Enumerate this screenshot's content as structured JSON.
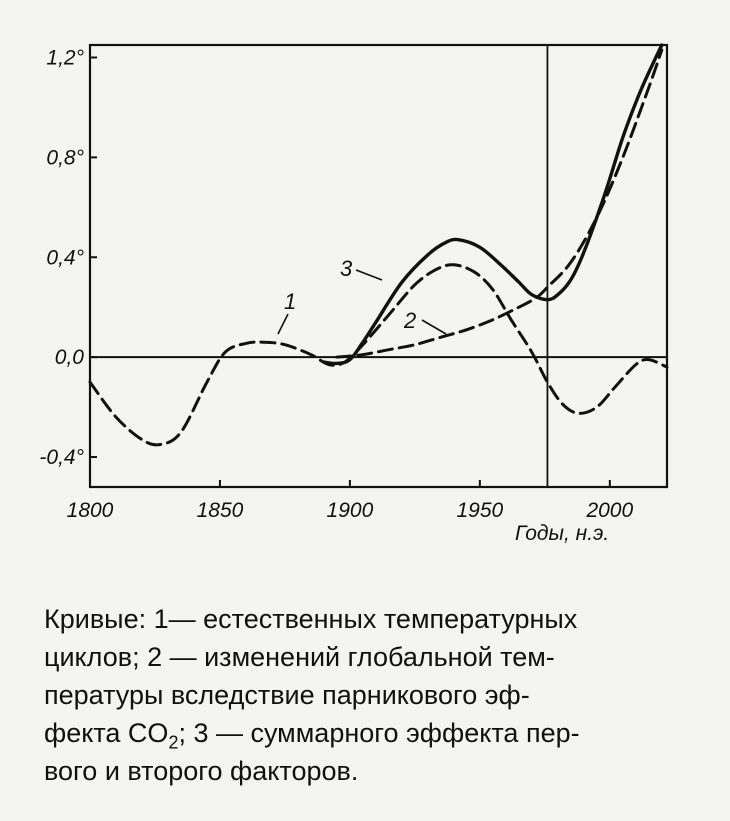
{
  "chart_data": {
    "type": "line",
    "xlabel": "Годы, н.э.",
    "ylabel": "",
    "xlim": [
      1800,
      2022
    ],
    "ylim": [
      -0.52,
      1.25
    ],
    "x_ticks": [
      1800,
      1850,
      1900,
      1950,
      2000
    ],
    "x_tick_labels": [
      "1800",
      "1850",
      "1900",
      "1950",
      "2000"
    ],
    "y_ticks": [
      -0.4,
      0.0,
      0.4,
      0.8,
      1.2
    ],
    "y_tick_labels": [
      "-0,4°",
      "0,0",
      "0,4°",
      "0,8°",
      "1,2°"
    ],
    "zero_line": true,
    "reference_line_x": 1976,
    "grid": false,
    "series": [
      {
        "name": "1",
        "style": "dashed",
        "x": [
          1800,
          1810,
          1820,
          1827,
          1835,
          1845,
          1852,
          1860,
          1867,
          1875,
          1885,
          1892,
          1898,
          1905,
          1915,
          1925,
          1933,
          1940,
          1948,
          1955,
          1962,
          1970,
          1976,
          1982,
          1988,
          1995,
          2002,
          2010,
          2015,
          2022
        ],
        "y": [
          -0.1,
          -0.24,
          -0.33,
          -0.35,
          -0.3,
          -0.1,
          0.02,
          0.055,
          0.06,
          0.05,
          0.01,
          -0.03,
          -0.02,
          0.05,
          0.17,
          0.29,
          0.35,
          0.37,
          0.34,
          0.27,
          0.15,
          0.02,
          -0.1,
          -0.19,
          -0.225,
          -0.2,
          -0.12,
          -0.03,
          -0.01,
          -0.04
        ]
      },
      {
        "name": "2",
        "style": "dashed",
        "x": [
          1895,
          1905,
          1915,
          1925,
          1935,
          1945,
          1955,
          1965,
          1972,
          1976,
          1985,
          1995,
          2005,
          2015,
          2020
        ],
        "y": [
          0.0,
          0.01,
          0.03,
          0.05,
          0.08,
          0.11,
          0.15,
          0.2,
          0.24,
          0.28,
          0.38,
          0.56,
          0.8,
          1.08,
          1.23
        ]
      },
      {
        "name": "3",
        "style": "solid",
        "x": [
          1890,
          1895,
          1900,
          1905,
          1910,
          1920,
          1930,
          1937,
          1942,
          1950,
          1958,
          1965,
          1970,
          1976,
          1980,
          1985,
          1990,
          1998,
          2005,
          2012,
          2020
        ],
        "y": [
          -0.02,
          -0.025,
          -0.01,
          0.06,
          0.14,
          0.3,
          0.41,
          0.46,
          0.47,
          0.44,
          0.37,
          0.3,
          0.25,
          0.23,
          0.25,
          0.31,
          0.42,
          0.65,
          0.88,
          1.07,
          1.25
        ]
      }
    ]
  },
  "caption": {
    "line1": "Кривые: 1— естественных температурных",
    "line2": "циклов; 2 — изменений глобальной тем-",
    "line3": "пературы вследствие парникового эф-",
    "line4_a": "фекта CO",
    "line4_sub": "2",
    "line4_b": "; 3 — суммарного эффекта пер-",
    "line5": "вого и второго факторов."
  }
}
